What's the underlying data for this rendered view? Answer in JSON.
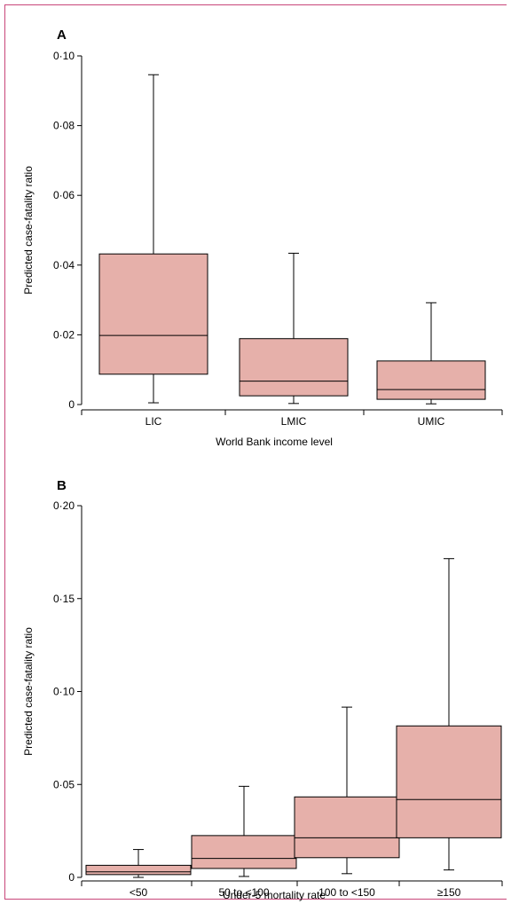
{
  "colors": {
    "frame": "#c9467a",
    "box_fill": "#e6b0aa",
    "stroke": "#000000"
  },
  "chart_data": [
    {
      "type": "boxplot",
      "panel_label": "A",
      "title": "",
      "xlabel": "World Bank income level",
      "ylabel": "Predicted case-fatality ratio",
      "ylim": [
        0,
        0.1
      ],
      "yticks": [
        0,
        0.02,
        0.04,
        0.06,
        0.08,
        0.1
      ],
      "ytick_labels": [
        "0",
        "0·02",
        "0·04",
        "0·06",
        "0·08",
        "0·10"
      ],
      "categories": [
        "LIC",
        "LMIC",
        "UMIC"
      ],
      "boxes": [
        {
          "whisker_low": 0.0005,
          "q1": 0.0087,
          "median": 0.0198,
          "q3": 0.0432,
          "whisker_high": 0.0946
        },
        {
          "whisker_low": 0.0003,
          "q1": 0.0025,
          "median": 0.0067,
          "q3": 0.0189,
          "whisker_high": 0.0434
        },
        {
          "whisker_low": 0.0002,
          "q1": 0.0015,
          "median": 0.0043,
          "q3": 0.0125,
          "whisker_high": 0.0292
        }
      ],
      "grid": false
    },
    {
      "type": "boxplot",
      "panel_label": "B",
      "title": "",
      "xlabel": "Under-5 mortality rate",
      "ylabel": "Predicted case-fatality ratio",
      "ylim": [
        0,
        0.2
      ],
      "yticks": [
        0,
        0.05,
        0.1,
        0.15,
        0.2
      ],
      "ytick_labels": [
        "0",
        "0·05",
        "0·10",
        "0·15",
        "0·20"
      ],
      "categories": [
        "<50",
        "50 to <100",
        "100 to <150",
        "≥150"
      ],
      "boxes": [
        {
          "whisker_low": 0.0,
          "q1": 0.0015,
          "median": 0.003,
          "q3": 0.0065,
          "whisker_high": 0.015
        },
        {
          "whisker_low": 0.0005,
          "q1": 0.0048,
          "median": 0.0102,
          "q3": 0.0225,
          "whisker_high": 0.049
        },
        {
          "whisker_low": 0.002,
          "q1": 0.0106,
          "median": 0.0213,
          "q3": 0.0433,
          "whisker_high": 0.0916
        },
        {
          "whisker_low": 0.004,
          "q1": 0.0213,
          "median": 0.0419,
          "q3": 0.0815,
          "whisker_high": 0.1715
        }
      ],
      "grid": false
    }
  ]
}
